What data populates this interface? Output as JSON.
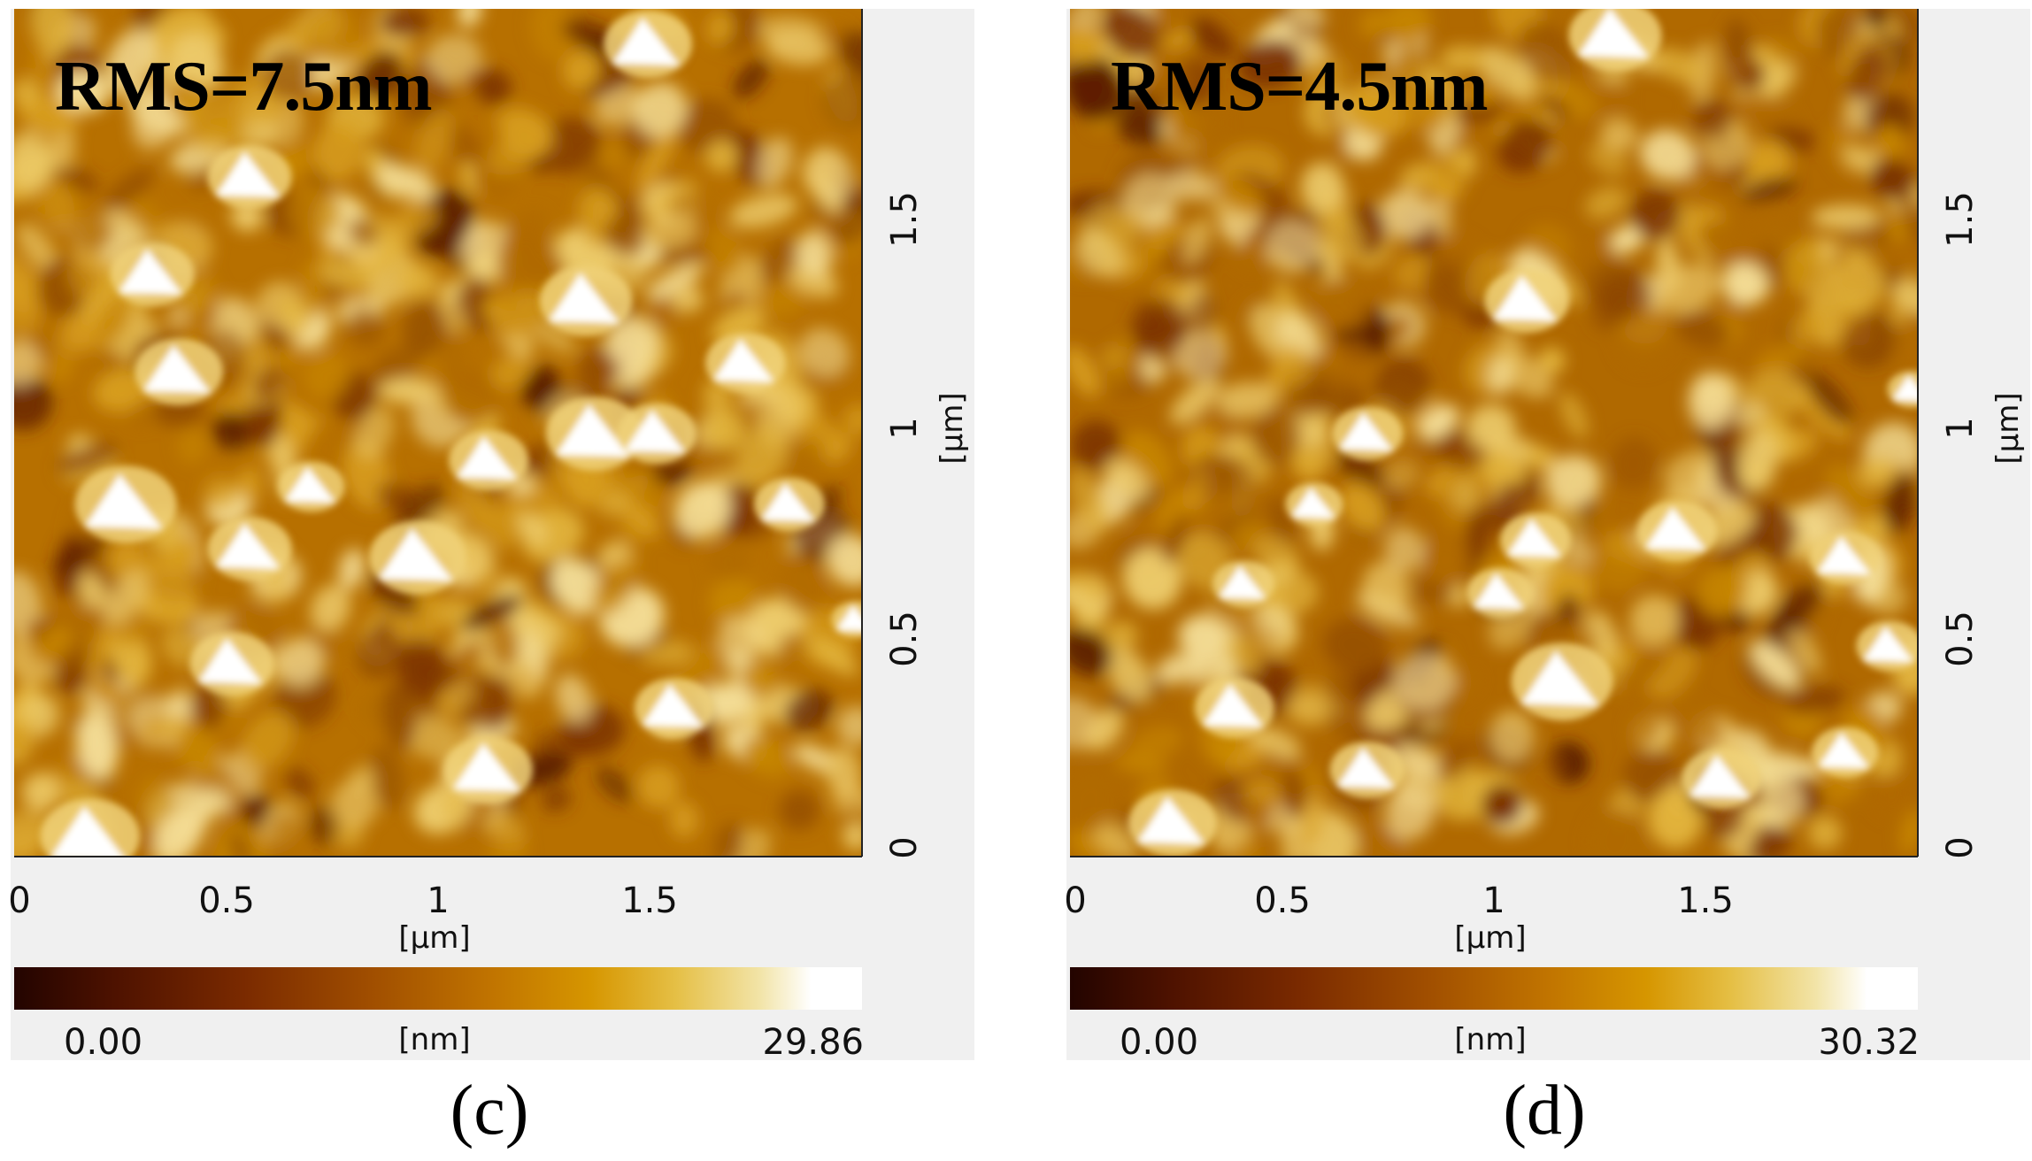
{
  "chart_data": [
    {
      "type": "heatmap",
      "title": "RMS=7.5nm",
      "caption": "(c)",
      "xlabel": "[µm]",
      "ylabel": "[µm]",
      "x_ticks": [
        "0",
        "0.5",
        "1",
        "1.5"
      ],
      "y_ticks": [
        "0",
        "0.5",
        "1",
        "1.5"
      ],
      "xlim": [
        0,
        2
      ],
      "ylim": [
        0,
        2
      ],
      "colorbar": {
        "min_label": "0.00",
        "max_label": "29.86",
        "unit": "[nm]",
        "min": 0,
        "max": 29.86
      },
      "colormap": [
        "#230400",
        "#7a2a00",
        "#c07300",
        "#e5bf45",
        "#ffffff"
      ]
    },
    {
      "type": "heatmap",
      "title": "RMS=4.5nm",
      "caption": "(d)",
      "xlabel": "[µm]",
      "ylabel": "[µm]",
      "x_ticks": [
        "0",
        "0.5",
        "1",
        "1.5"
      ],
      "y_ticks": [
        "0",
        "0.5",
        "1",
        "1.5"
      ],
      "xlim": [
        0,
        2
      ],
      "ylim": [
        0,
        2
      ],
      "colorbar": {
        "min_label": "0.00",
        "max_label": "30.32",
        "unit": "[nm]",
        "min": 0,
        "max": 30.32
      },
      "colormap": [
        "#230400",
        "#7a2a00",
        "#c07300",
        "#e5bf45",
        "#ffffff"
      ]
    }
  ]
}
